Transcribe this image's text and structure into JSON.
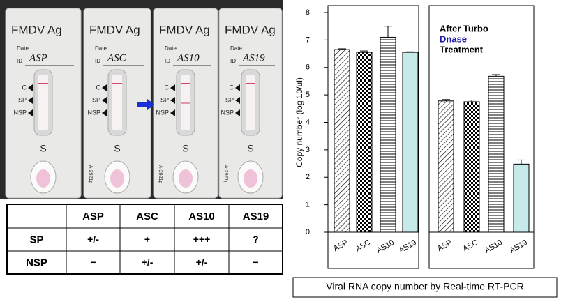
{
  "photo": {
    "cassettes": [
      {
        "title": "FMDV Ag",
        "date": "Date",
        "id": "ID",
        "label": "ASP",
        "markers": [
          "C",
          "SP",
          "NSP"
        ],
        "well": "S"
      },
      {
        "title": "FMDV Ag",
        "date": "Date",
        "id": "ID",
        "label": "ASC",
        "markers": [
          "C",
          "SP",
          "NSP"
        ],
        "well": "S",
        "side": "A-2921p"
      },
      {
        "title": "FMDV Ag",
        "date": "Date",
        "id": "ID",
        "label": "AS10",
        "markers": [
          "C",
          "SP",
          "NSP"
        ],
        "well": "S",
        "side": "A-2921p"
      },
      {
        "title": "FMDV Ag",
        "date": "Date",
        "id": "ID",
        "label": "AS19",
        "markers": [
          "C",
          "SP",
          "NSP"
        ],
        "well": "S",
        "side": "A-2921p"
      }
    ]
  },
  "table": {
    "header": [
      "ASP",
      "ASC",
      "AS10",
      "AS19"
    ],
    "rows": [
      {
        "label": "SP",
        "cells": [
          "+/-",
          "+",
          "+++",
          "?"
        ]
      },
      {
        "label": "NSP",
        "cells": [
          "−",
          "+/-",
          "+/-",
          "−"
        ]
      }
    ]
  },
  "caption": "Viral RNA copy number by Real-time RT-PCR",
  "chart_data": [
    {
      "type": "bar",
      "y_label": "Copy number (log 10/ul)",
      "categories": [
        "ASP",
        "ASC",
        "AS10",
        "AS19"
      ],
      "values": [
        6.65,
        6.55,
        7.1,
        6.55
      ],
      "errors": [
        0.03,
        0.05,
        0.4,
        0.02
      ],
      "ylim": [
        0,
        8
      ],
      "yticks": [
        0,
        1,
        2,
        3,
        4,
        5,
        6,
        7,
        8
      ]
    },
    {
      "type": "bar",
      "annotation": [
        "After Turbo",
        "Dnase",
        "Treatment"
      ],
      "categories": [
        "ASP",
        "ASC",
        "AS10",
        "AS19"
      ],
      "values": [
        4.78,
        4.75,
        5.68,
        2.48
      ],
      "errors": [
        0.05,
        0.06,
        0.06,
        0.15
      ],
      "ylim": [
        0,
        8
      ]
    }
  ]
}
